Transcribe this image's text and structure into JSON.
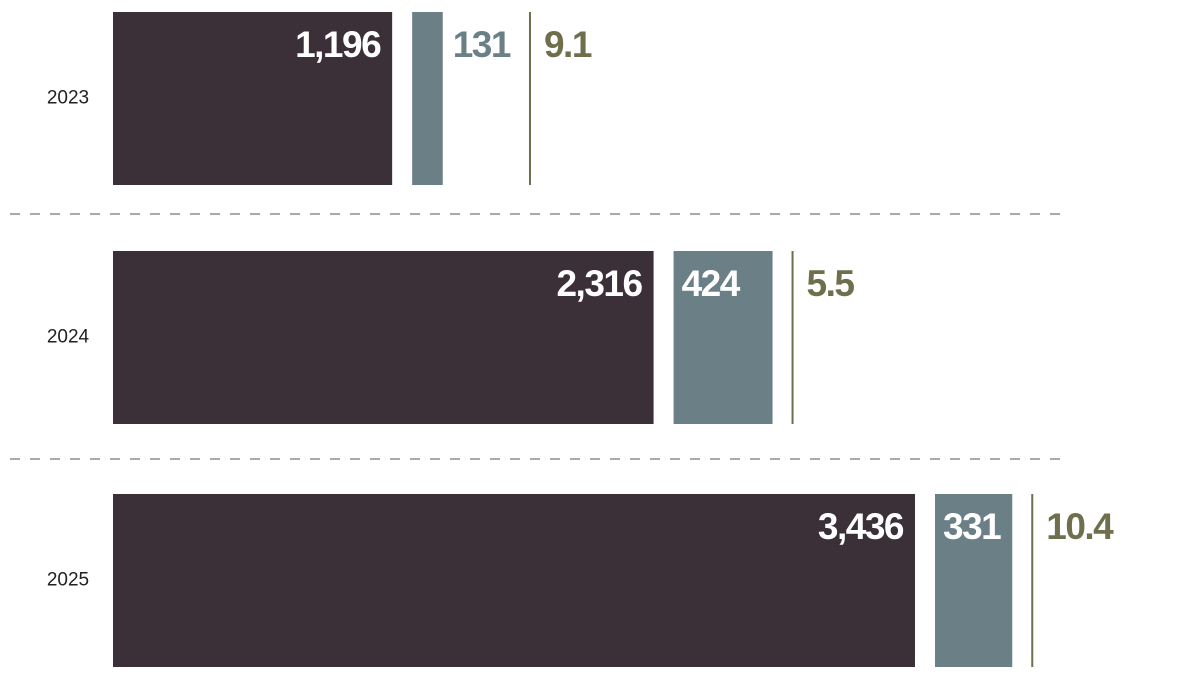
{
  "chart_data": {
    "type": "bar",
    "categories": [
      "2023",
      "2024",
      "2025"
    ],
    "series": [
      {
        "color": "#3b2f38",
        "values": [
          1196,
          2316,
          3436
        ],
        "value_labels": [
          "1,196",
          "2,316",
          "3,436"
        ]
      },
      {
        "color": "#6b7f86",
        "values": [
          131,
          424,
          331
        ]
      },
      {
        "color": "#6f6e4d",
        "values": [
          9.1,
          5.5,
          10.4
        ]
      }
    ]
  }
}
